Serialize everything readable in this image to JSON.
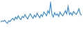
{
  "chart_data": {
    "type": "line",
    "categories": [
      null,
      null,
      null,
      null,
      null,
      null,
      null,
      null,
      null,
      null,
      null,
      null,
      null,
      null,
      null,
      null,
      null,
      null,
      null,
      null,
      null,
      null,
      null,
      null,
      null,
      null,
      null,
      null,
      null,
      null,
      null,
      null,
      null,
      null,
      null,
      null,
      null,
      null,
      null,
      null,
      null,
      null,
      null,
      null,
      null,
      null,
      null,
      null,
      null,
      null,
      null,
      null,
      null,
      null,
      null,
      null,
      null,
      null,
      null,
      null,
      null
    ],
    "values": [
      12,
      14,
      13,
      15,
      12,
      10,
      14,
      13,
      16,
      18,
      15,
      20,
      17,
      22,
      18,
      16,
      21,
      19,
      24,
      20,
      17,
      22,
      25,
      21,
      18,
      23,
      20,
      26,
      22,
      19,
      24,
      21,
      28,
      25,
      22,
      30,
      26,
      43,
      24,
      20,
      27,
      23,
      25,
      21,
      28,
      24,
      22,
      26,
      30,
      25,
      37,
      24,
      27,
      23,
      29,
      26,
      24,
      28,
      33,
      25,
      23
    ],
    "color": "#3a8fd4",
    "ylim": [
      0,
      45
    ],
    "grid": false,
    "tick_labels": false
  }
}
